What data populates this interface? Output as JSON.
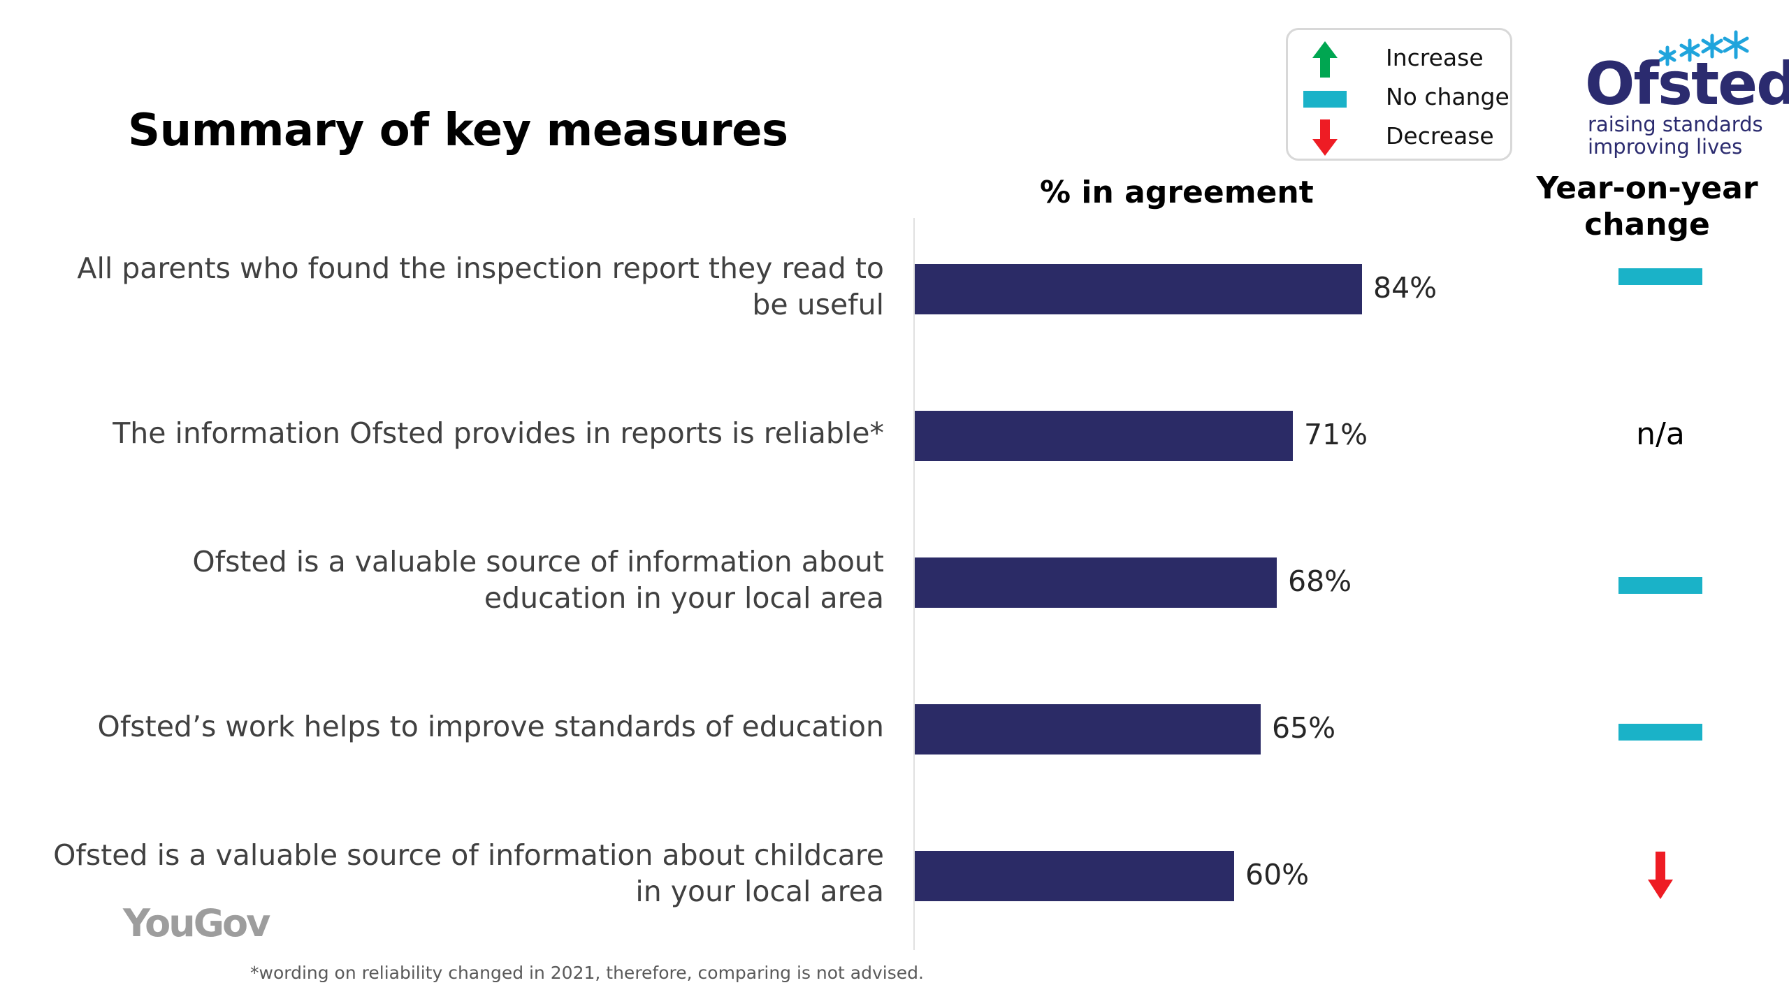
{
  "title": "Summary of key measures",
  "legend": {
    "items": [
      {
        "label": "Increase",
        "icon": "up-arrow-icon",
        "color": "#00a651"
      },
      {
        "label": "No change",
        "icon": "dash-icon",
        "color": "#1ab2c8"
      },
      {
        "label": "Decrease",
        "icon": "down-arrow-icon",
        "color": "#ee1c24"
      }
    ]
  },
  "logo": {
    "word": "Ofsted",
    "tagline_1": "raising standards",
    "tagline_2": "improving lives"
  },
  "columns": {
    "agreement": "% in agreement",
    "yoy": "Year-on-year change"
  },
  "branding": {
    "yougov": "YouGov"
  },
  "footnote": "*wording on reliability changed in 2021, therefore, comparing is not advised.",
  "colors": {
    "bar": "#2b2b66",
    "no_change": "#1ab2c8",
    "decrease": "#ee1c24",
    "increase": "#00a651"
  },
  "chart_data": {
    "type": "bar",
    "orientation": "horizontal",
    "categories": [
      "All parents who found the inspection report they read to be useful",
      "The information Ofsted provides in reports is reliable*",
      "Ofsted is a valuable source of information about education in your local area",
      "Ofsted’s work helps to improve standards of education",
      "Ofsted is a valuable source of information about childcare in your local area"
    ],
    "values": [
      84,
      71,
      68,
      65,
      60
    ],
    "value_labels": [
      "84%",
      "71%",
      "68%",
      "65%",
      "60%"
    ],
    "yoy_change": [
      "no change",
      "n/a",
      "no change",
      "no change",
      "decrease"
    ],
    "yoy_na_label": "n/a",
    "xlim": [
      0,
      100
    ],
    "grid": false
  }
}
